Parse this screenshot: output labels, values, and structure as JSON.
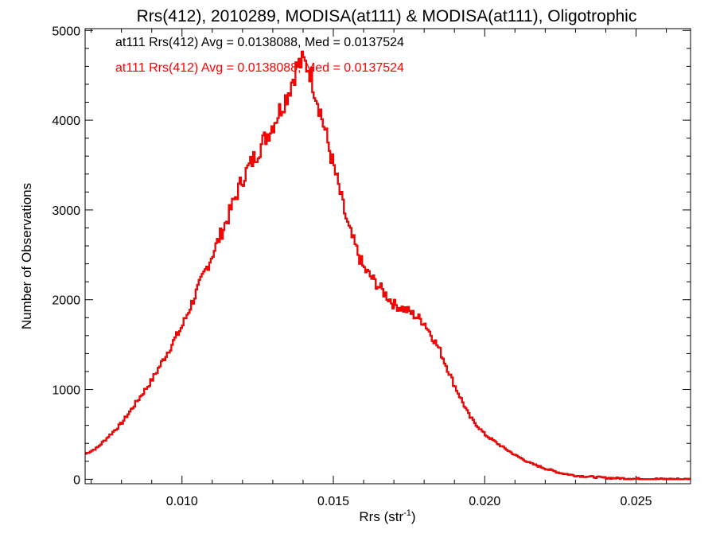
{
  "chart_data": {
    "type": "line",
    "title": "Rrs(412), 2010289, MODISA(at111) & MODISA(at111), Oligotrophic",
    "xlabel_main": "Rrs (str",
    "xlabel_sup": "-1",
    "xlabel_close": ")",
    "ylabel": "Number of Observations",
    "xlim": [
      0.0068,
      0.0268
    ],
    "ylim": [
      -50,
      5020
    ],
    "xticks": [
      {
        "value": 0.01,
        "label": "0.010"
      },
      {
        "value": 0.015,
        "label": "0.015"
      },
      {
        "value": 0.02,
        "label": "0.020"
      },
      {
        "value": 0.025,
        "label": "0.025"
      }
    ],
    "yticks": [
      {
        "value": 0,
        "label": "0"
      },
      {
        "value": 1000,
        "label": "1000"
      },
      {
        "value": 2000,
        "label": "2000"
      },
      {
        "value": 3000,
        "label": "3000"
      },
      {
        "value": 4000,
        "label": "4000"
      },
      {
        "value": 5000,
        "label": "5000"
      }
    ],
    "annotations": [
      {
        "text": "at111 Rrs(412) Avg = 0.0138088, Med = 0.0137524",
        "color": "#000000"
      },
      {
        "text": "at111 Rrs(412) Avg = 0.0138088, Med = 0.0137524",
        "color": "#ff0000"
      }
    ],
    "series": [
      {
        "color_primary": "#000000",
        "color_overlay": "#ff0000",
        "style": "step",
        "anchors_x": [
          0.0068,
          0.0072,
          0.008,
          0.009,
          0.01,
          0.011,
          0.0115,
          0.012,
          0.0125,
          0.013,
          0.0135,
          0.0138,
          0.014,
          0.0142,
          0.0145,
          0.015,
          0.0155,
          0.016,
          0.0165,
          0.017,
          0.0175,
          0.018,
          0.0185,
          0.019,
          0.0195,
          0.02,
          0.0205,
          0.021,
          0.0215,
          0.022,
          0.0225,
          0.023,
          0.024,
          0.025,
          0.026,
          0.0268
        ],
        "anchors_y": [
          280,
          350,
          620,
          1100,
          1700,
          2500,
          2900,
          3350,
          3650,
          3950,
          4300,
          4600,
          4650,
          4580,
          4200,
          3500,
          2800,
          2350,
          2150,
          1950,
          1870,
          1750,
          1450,
          1050,
          700,
          500,
          380,
          270,
          180,
          120,
          70,
          40,
          15,
          5,
          2,
          0
        ]
      }
    ]
  }
}
